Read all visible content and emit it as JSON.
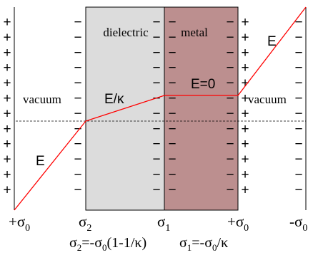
{
  "regions": {
    "vacuum_left": "vacuum",
    "dielectric": "dielectric",
    "metal": "metal",
    "vacuum_right": "vacuum"
  },
  "field_labels": {
    "left_lower": "E",
    "dielectric": "E/κ",
    "metal": "E=0",
    "right_upper": "E"
  },
  "plate_labels": {
    "plate1": {
      "sign": "+",
      "sym": "σ",
      "sub": "0"
    },
    "plate2": {
      "sign": "",
      "sym": "σ",
      "sub": "2"
    },
    "plate3": {
      "sign": "",
      "sym": "σ",
      "sub": "1"
    },
    "plate4": {
      "sign": "+",
      "sym": "σ",
      "sub": "0"
    },
    "plate5": {
      "sign": "-",
      "sym": "σ",
      "sub": "0"
    }
  },
  "formulas": {
    "sigma2": {
      "lhs_sym": "σ",
      "lhs_sub": "2",
      "eq": "=-",
      "rhs_sym": "σ",
      "rhs_sub": "0",
      "tail": "(1-1/κ)"
    },
    "sigma1": {
      "lhs_sym": "σ",
      "lhs_sub": "1",
      "eq": "=-",
      "rhs_sym": "σ",
      "rhs_sub": "0",
      "tail": "/κ"
    }
  },
  "charge_signs": {
    "plus": "+",
    "minus": "−"
  },
  "colors": {
    "dielectric_fill": "#dcdcdc",
    "metal_fill": "#bc8f8f",
    "potential_line": "#ff0000",
    "outline": "#000000"
  }
}
